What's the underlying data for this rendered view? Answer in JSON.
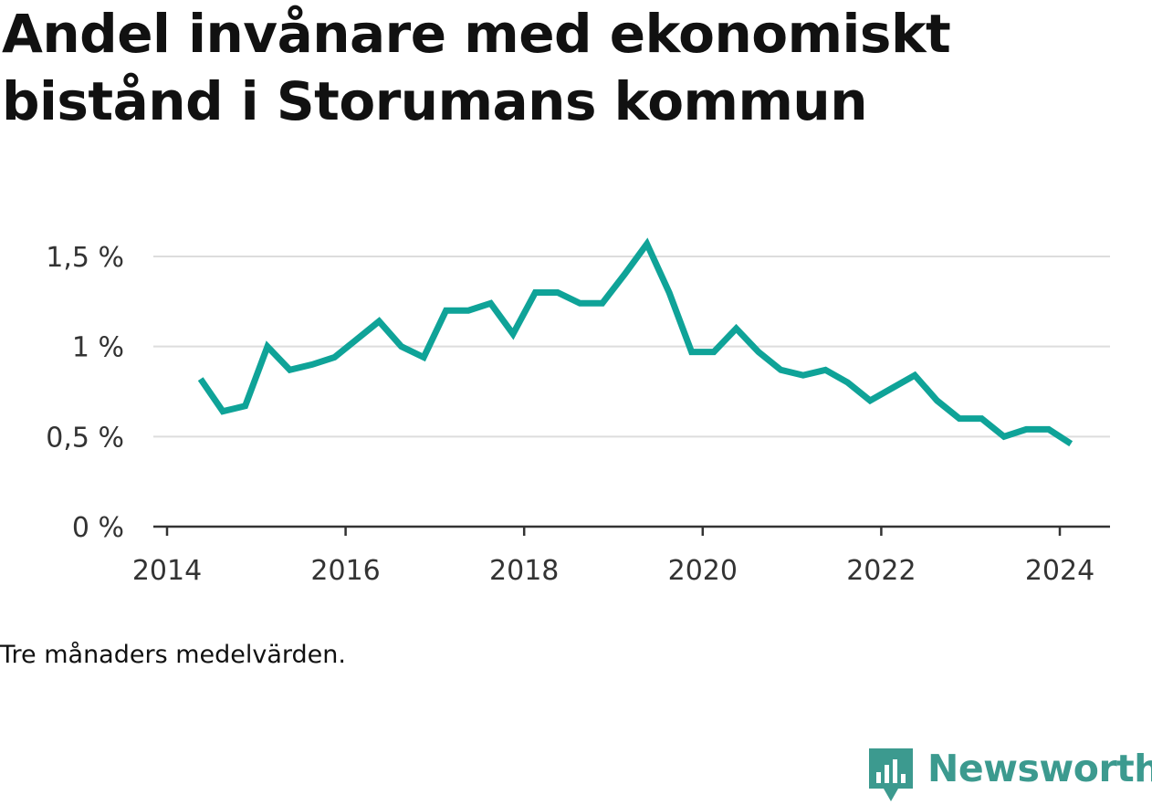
{
  "title": "Andel invånare med ekonomiskt bistånd i Storumans kommun",
  "footnote": "Tre månaders medelvärden.",
  "brand": {
    "name": "Newsworthy",
    "color": "#3c9a8f",
    "icon": "chart-speech-bubble-icon"
  },
  "chart_data": {
    "type": "line",
    "title": "Andel invånare med ekonomiskt bistånd i Storumans kommun",
    "xlabel": "",
    "ylabel": "",
    "x_ticks": [
      2014,
      2016,
      2018,
      2020,
      2022,
      2024
    ],
    "y_ticks": [
      {
        "value": 0,
        "label": "0 %"
      },
      {
        "value": 0.5,
        "label": "0,5 %"
      },
      {
        "value": 1,
        "label": "1 %"
      },
      {
        "value": 1.5,
        "label": "1,5 %"
      }
    ],
    "xlim": [
      2014,
      2024.5
    ],
    "ylim": [
      0,
      1.5
    ],
    "grid": true,
    "line_color": "#0fa398",
    "series": [
      {
        "name": "",
        "x": [
          "2014-05",
          "2014-08",
          "2014-11",
          "2015-02",
          "2015-05",
          "2015-08",
          "2015-11",
          "2016-02",
          "2016-05",
          "2016-08",
          "2016-11",
          "2017-02",
          "2017-05",
          "2017-08",
          "2017-11",
          "2018-02",
          "2018-05",
          "2018-08",
          "2018-11",
          "2019-02",
          "2019-05",
          "2019-08",
          "2019-11",
          "2020-02",
          "2020-05",
          "2020-08",
          "2020-11",
          "2021-02",
          "2021-05",
          "2021-08",
          "2021-11",
          "2022-02",
          "2022-05",
          "2022-08",
          "2022-11",
          "2023-02",
          "2023-05",
          "2023-08",
          "2023-11",
          "2024-02"
        ],
        "values": [
          0.82,
          0.64,
          0.67,
          1.0,
          0.87,
          0.9,
          0.94,
          1.04,
          1.14,
          1.0,
          0.94,
          1.2,
          1.2,
          1.24,
          1.07,
          1.3,
          1.3,
          1.24,
          1.24,
          1.4,
          1.57,
          1.3,
          0.97,
          0.97,
          1.1,
          0.97,
          0.87,
          0.84,
          0.87,
          0.8,
          0.7,
          0.77,
          0.84,
          0.7,
          0.6,
          0.6,
          0.5,
          0.54,
          0.54,
          0.46
        ]
      }
    ]
  }
}
